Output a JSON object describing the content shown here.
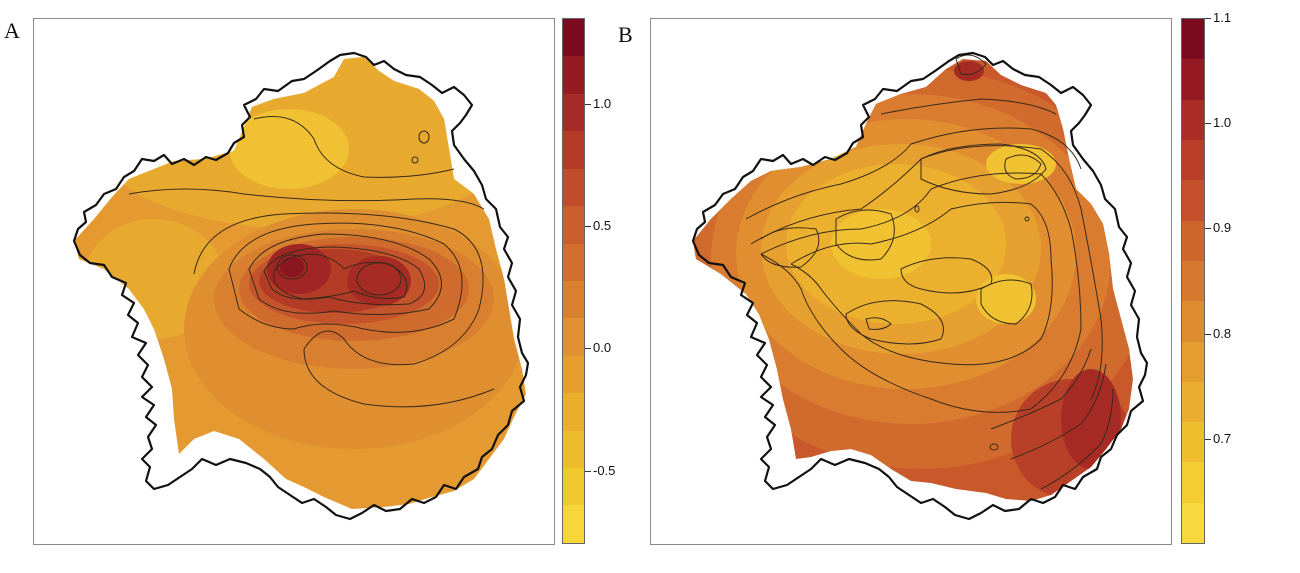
{
  "panels": [
    {
      "letter": "A",
      "legend": {
        "ticks": [
          "1.0",
          "0.5",
          "0.0",
          "-0.5"
        ],
        "tick_values": [
          1.0,
          0.5,
          0.0,
          -0.5
        ],
        "range": [
          -0.8,
          1.35
        ],
        "colors": [
          "#7b0a1e",
          "#951a22",
          "#a62a25",
          "#b53b27",
          "#c04c2a",
          "#ca5e2c",
          "#d26f2e",
          "#d9802f",
          "#e09030",
          "#e69f2f",
          "#eaad2e",
          "#eebb2d",
          "#f2c82f",
          "#f7d63a"
        ]
      }
    },
    {
      "letter": "B",
      "legend": {
        "ticks": [
          "1.1",
          "1.0",
          "0.9",
          "0.8",
          "0.7"
        ],
        "tick_values": [
          1.1,
          1.0,
          0.9,
          0.8,
          0.7
        ],
        "range": [
          0.6,
          1.1
        ],
        "colors": [
          "#7b0a1e",
          "#951a22",
          "#a92c25",
          "#b83e28",
          "#c4512b",
          "#ce652d",
          "#d6792f",
          "#de8c30",
          "#e59d30",
          "#eaad2e",
          "#efbe2e",
          "#f4cd33",
          "#f8d93d"
        ]
      }
    }
  ],
  "colors": {
    "frame": "#8a8a8a",
    "outline": "#111111",
    "contour": "#3a2a1a"
  }
}
